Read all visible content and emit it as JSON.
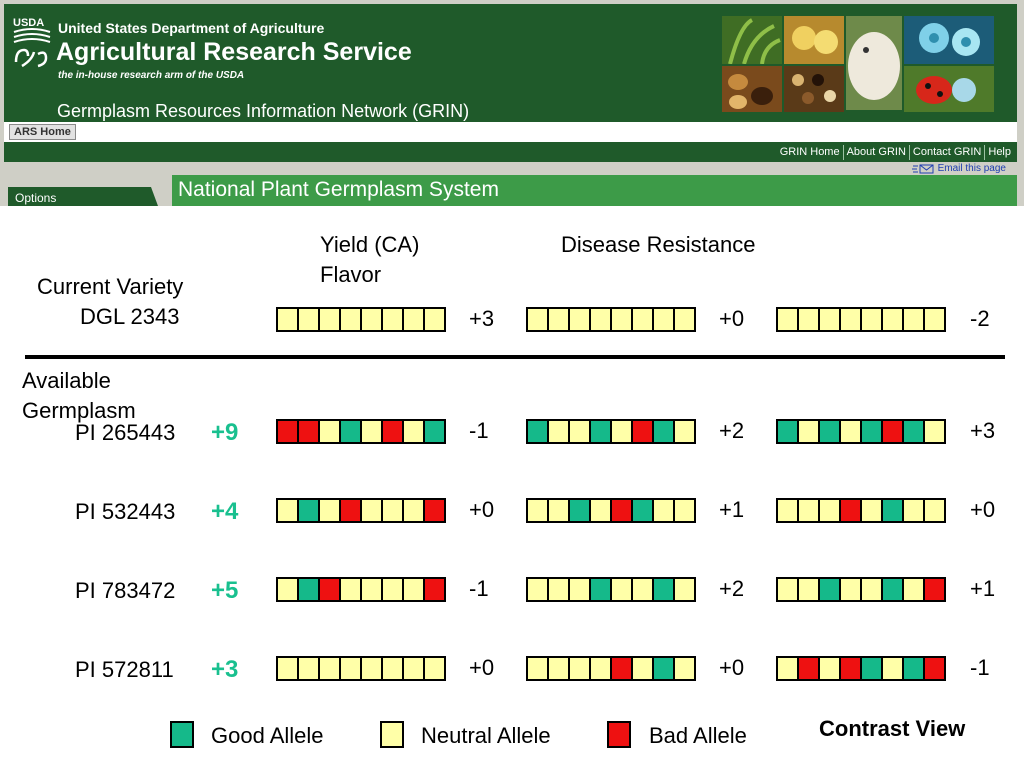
{
  "header": {
    "logo_text": "USDA",
    "dept_title": "United States Department of Agriculture",
    "agency_title": "Agricultural Research Service",
    "agency_tagline": "the in-house research arm of the USDA",
    "grin_title": "Germplasm Resources Information Network (GRIN)",
    "ars_home": "ARS Home",
    "nav_links": [
      "GRIN Home",
      "About GRIN",
      "Contact GRIN",
      "Help"
    ],
    "email_link": "Email this page",
    "options_tab": "Options",
    "banner_title": "National Plant Germplasm System",
    "colors": {
      "dark_green": "#1f5a2a",
      "bright_green": "#3d9b48"
    }
  },
  "traits": {
    "trait1": "Yield (CA)",
    "trait1_second_line": "Flavor",
    "trait2": "Disease Resistance"
  },
  "current": {
    "heading": "Current Variety",
    "name": "DGL 2343",
    "groups": [
      {
        "alleles": [
          "N",
          "N",
          "N",
          "N",
          "N",
          "N",
          "N",
          "N"
        ],
        "score": "+3"
      },
      {
        "alleles": [
          "N",
          "N",
          "N",
          "N",
          "N",
          "N",
          "N",
          "N"
        ],
        "score": "+0"
      },
      {
        "alleles": [
          "N",
          "N",
          "N",
          "N",
          "N",
          "N",
          "N",
          "N"
        ],
        "score": "-2"
      }
    ]
  },
  "available": {
    "heading_line1": "Available",
    "heading_line2": "Germplasm",
    "rows": [
      {
        "id": "PI 265443",
        "total": "+9",
        "groups": [
          {
            "alleles": [
              "B",
              "B",
              "N",
              "G",
              "N",
              "B",
              "N",
              "G"
            ],
            "score": "-1"
          },
          {
            "alleles": [
              "G",
              "N",
              "N",
              "G",
              "N",
              "B",
              "G",
              "N"
            ],
            "score": "+2"
          },
          {
            "alleles": [
              "G",
              "N",
              "G",
              "N",
              "G",
              "B",
              "G",
              "N"
            ],
            "score": "+3"
          }
        ]
      },
      {
        "id": "PI 532443",
        "total": "+4",
        "groups": [
          {
            "alleles": [
              "N",
              "G",
              "N",
              "B",
              "N",
              "N",
              "N",
              "B"
            ],
            "score": "+0"
          },
          {
            "alleles": [
              "N",
              "N",
              "G",
              "N",
              "B",
              "G",
              "N",
              "N"
            ],
            "score": "+1"
          },
          {
            "alleles": [
              "N",
              "N",
              "N",
              "B",
              "N",
              "G",
              "N",
              "N"
            ],
            "score": "+0"
          }
        ]
      },
      {
        "id": "PI 783472",
        "total": "+5",
        "groups": [
          {
            "alleles": [
              "N",
              "G",
              "B",
              "N",
              "N",
              "N",
              "N",
              "B"
            ],
            "score": "-1"
          },
          {
            "alleles": [
              "N",
              "N",
              "N",
              "G",
              "N",
              "N",
              "G",
              "N"
            ],
            "score": "+2"
          },
          {
            "alleles": [
              "N",
              "N",
              "G",
              "N",
              "N",
              "G",
              "N",
              "B"
            ],
            "score": "+1"
          }
        ]
      },
      {
        "id": "PI 572811",
        "total": "+3",
        "groups": [
          {
            "alleles": [
              "N",
              "N",
              "N",
              "N",
              "N",
              "N",
              "N",
              "N"
            ],
            "score": "+0"
          },
          {
            "alleles": [
              "N",
              "N",
              "N",
              "N",
              "B",
              "N",
              "G",
              "N"
            ],
            "score": "+0"
          },
          {
            "alleles": [
              "N",
              "B",
              "N",
              "B",
              "G",
              "N",
              "G",
              "B"
            ],
            "score": "-1"
          }
        ]
      }
    ]
  },
  "legend": {
    "good": "Good Allele",
    "neutral": "Neutral Allele",
    "bad": "Bad Allele",
    "title": "Contrast View"
  },
  "allele_colors": {
    "G": "#15b98a",
    "N": "#ffffa8",
    "B": "#ee1111"
  }
}
